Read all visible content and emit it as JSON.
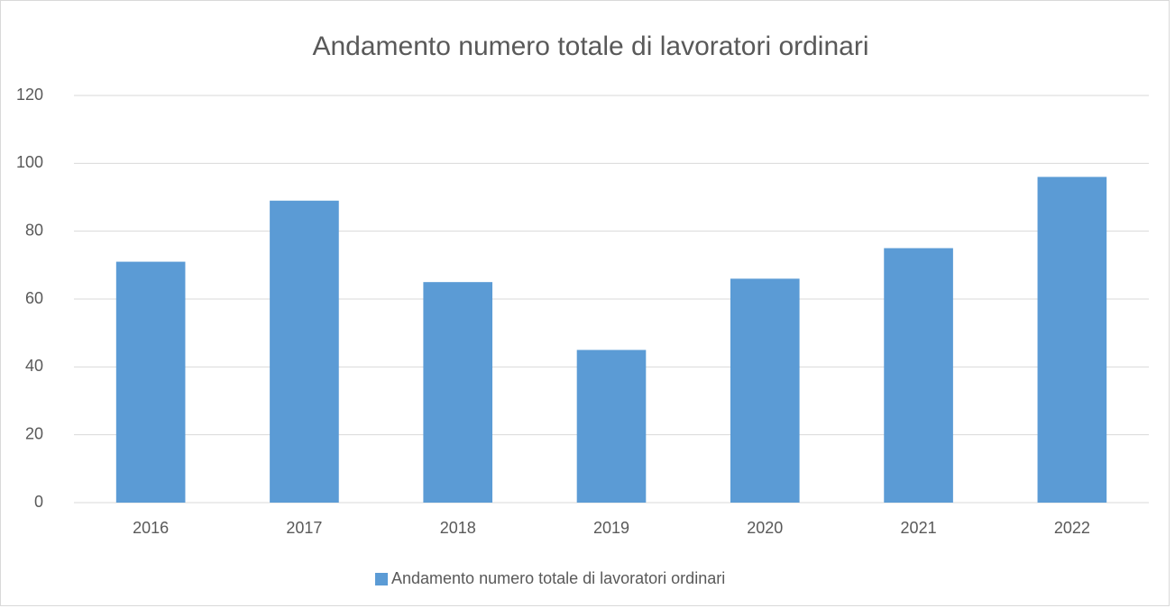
{
  "chart_data": {
    "type": "bar",
    "title": "Andamento numero totale di lavoratori ordinari",
    "categories": [
      "2016",
      "2017",
      "2018",
      "2019",
      "2020",
      "2021",
      "2022"
    ],
    "series": [
      {
        "name": "Andamento numero totale di lavoratori ordinari",
        "color": "#5b9bd5",
        "values": [
          71,
          89,
          65,
          45,
          66,
          75,
          96
        ]
      }
    ],
    "ylim": [
      0,
      120
    ],
    "yticks": [
      0,
      20,
      40,
      60,
      80,
      100,
      120
    ],
    "grid": true,
    "legend": "bottom"
  }
}
